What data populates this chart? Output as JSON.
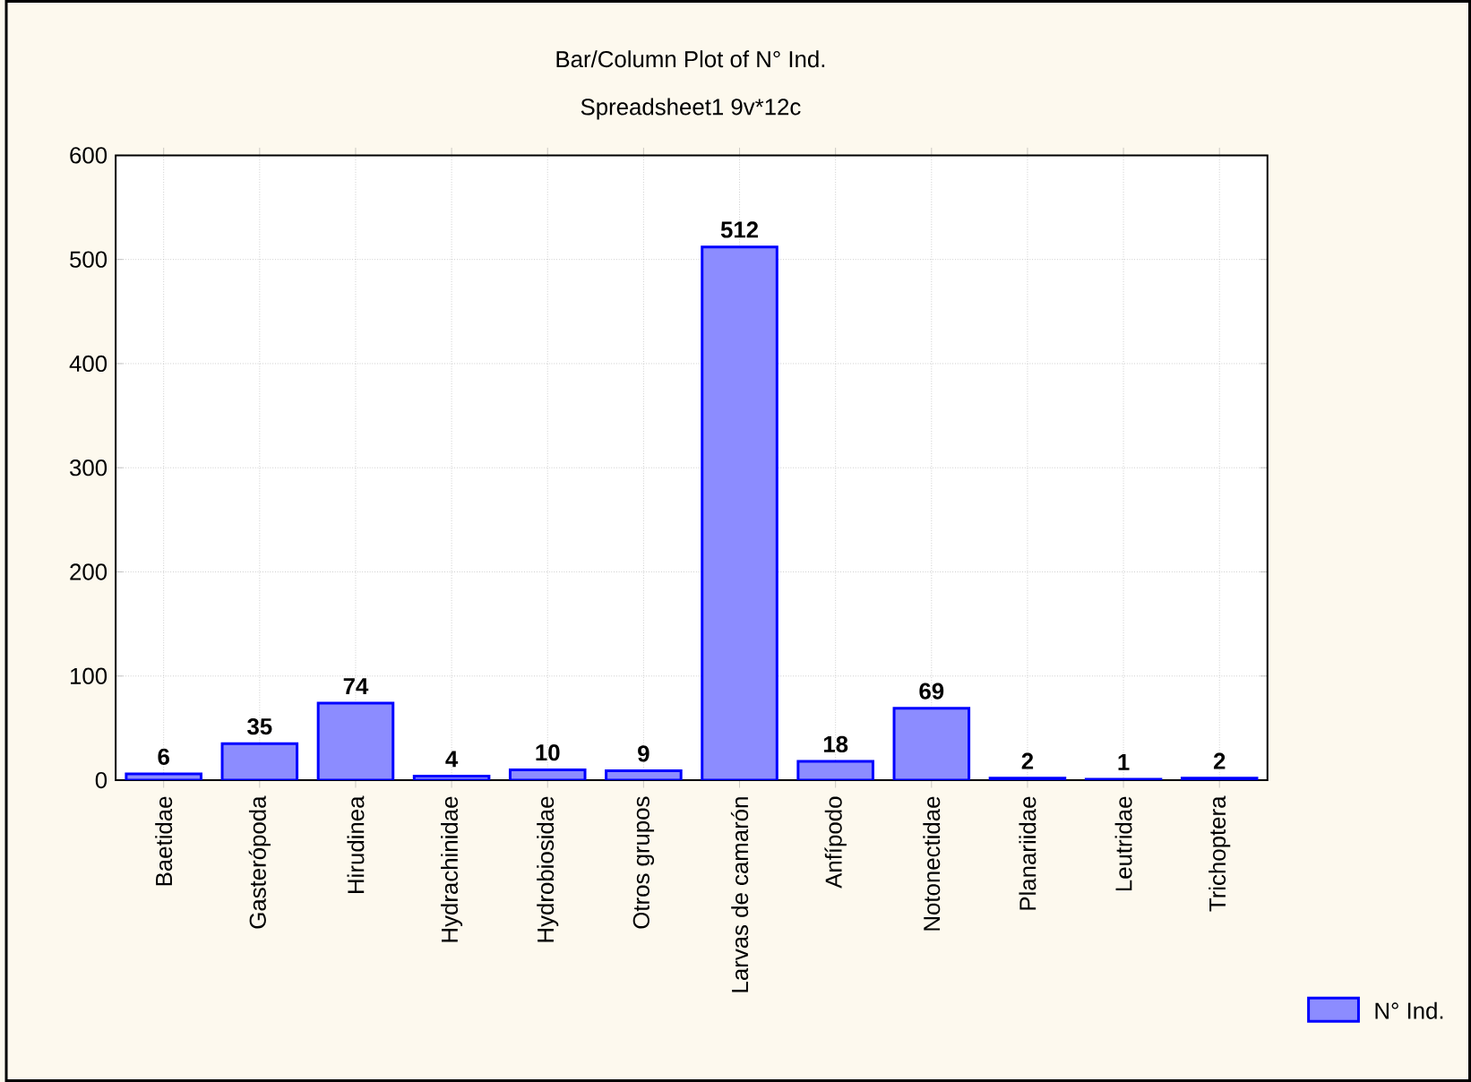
{
  "chart_data": {
    "type": "bar",
    "title": "Bar/Column Plot of N° Ind.",
    "subtitle": "Spreadsheet1 9v*12c",
    "categories": [
      "Baetidae",
      "Gasterópoda",
      "Hirudinea",
      "Hydrachinidae",
      "Hydrobiosidae",
      "Otros grupos",
      "Larvas de camarón",
      "Anfípodo",
      "Notonectidae",
      "Planariidae",
      "Leutridae",
      "Trichoptera"
    ],
    "series": [
      {
        "name": "N° Ind.",
        "color": "#8c8cff",
        "values": [
          6,
          35,
          74,
          4,
          10,
          9,
          512,
          18,
          69,
          2,
          1,
          2
        ]
      }
    ],
    "ylim": [
      0,
      600
    ],
    "yticks": [
      0,
      100,
      200,
      300,
      400,
      500,
      600
    ],
    "grid": true,
    "legend": "bottom right",
    "data_labels": true
  }
}
